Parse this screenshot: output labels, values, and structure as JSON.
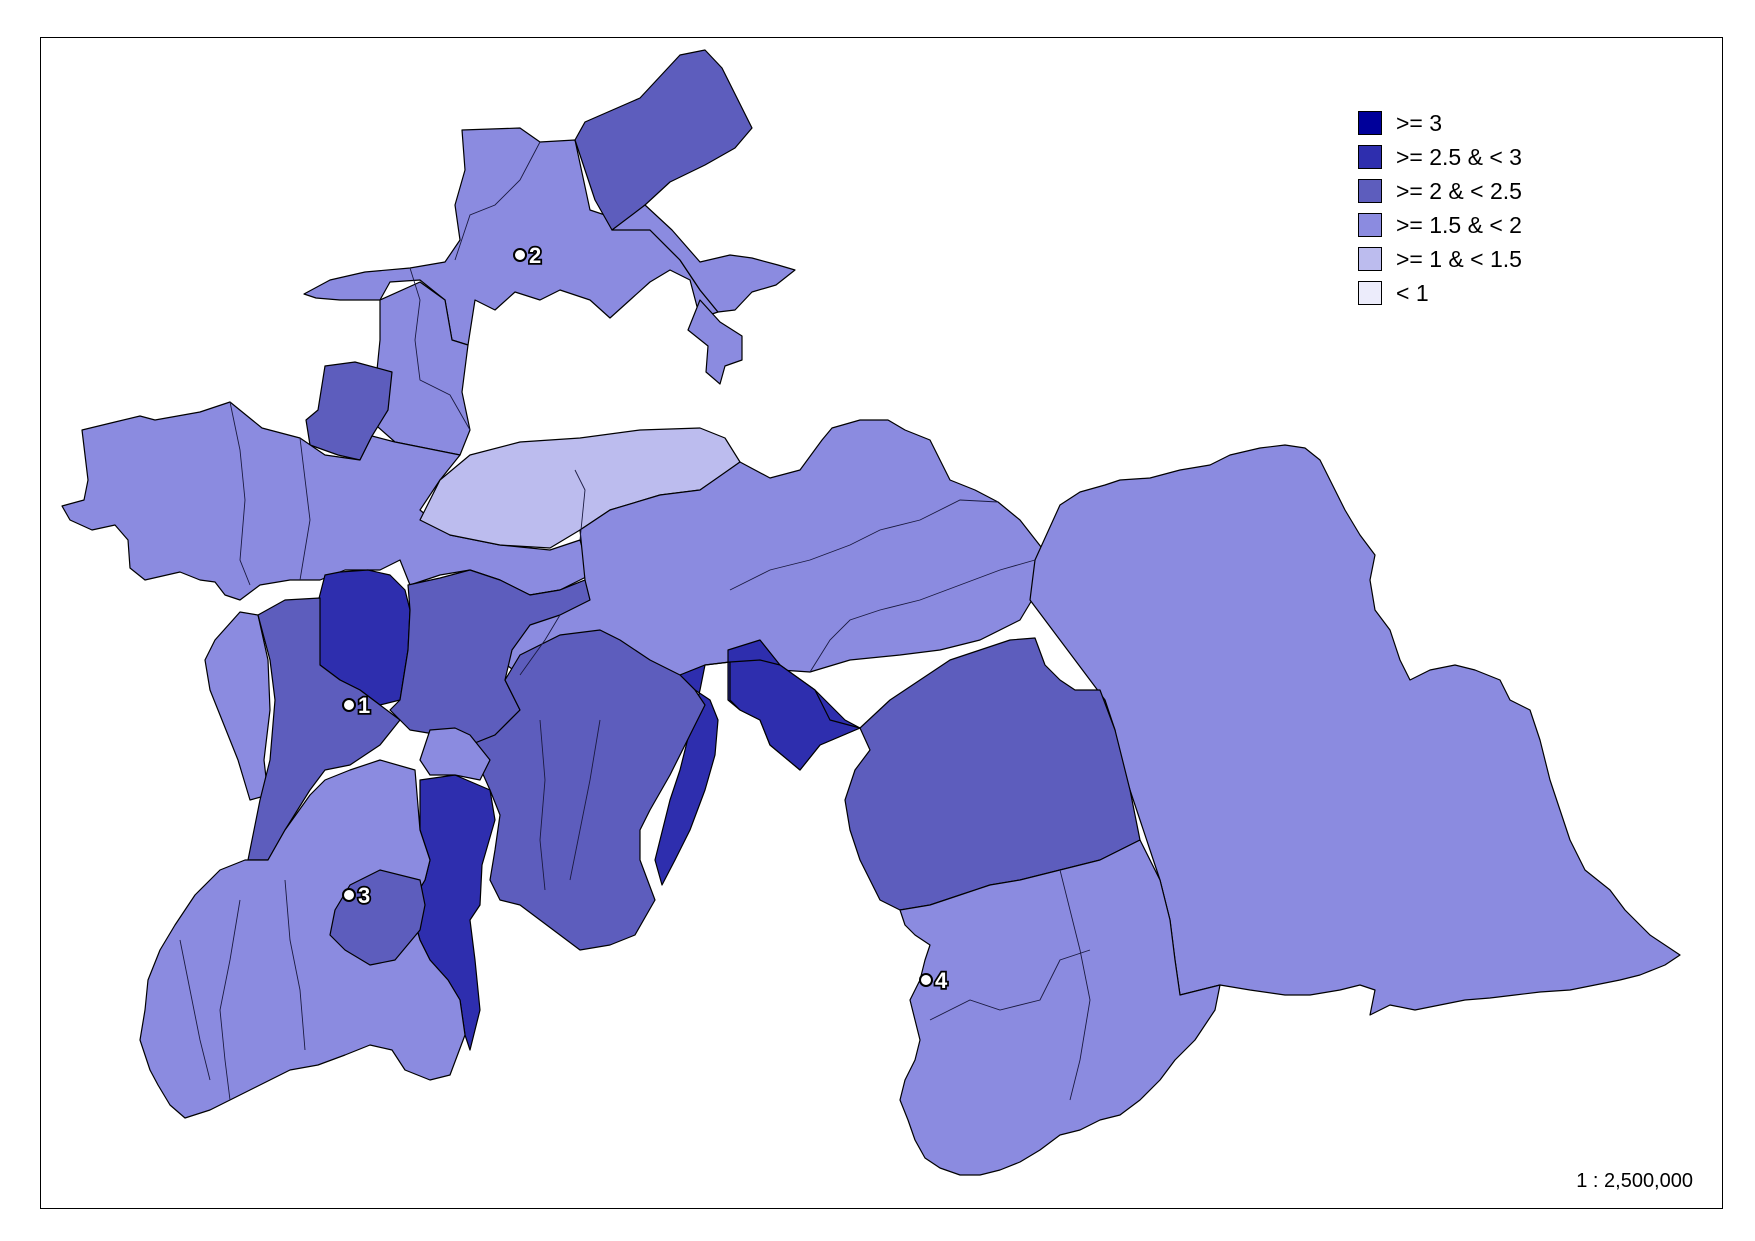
{
  "legend": {
    "items": [
      {
        "label": ">= 3",
        "color": "#00009a"
      },
      {
        "label": ">= 2.5 & < 3",
        "color": "#2e2eae"
      },
      {
        "label": ">= 2 & < 2.5",
        "color": "#5d5dbd"
      },
      {
        "label": ">= 1.5 & < 2",
        "color": "#8b8be0"
      },
      {
        "label": ">= 1 & < 1.5",
        "color": "#bcbcee"
      },
      {
        "label": "< 1",
        "color": "#ececfb"
      }
    ]
  },
  "scale": "1 : 2,500,000",
  "cities": [
    {
      "label": "1"
    },
    {
      "label": "2"
    },
    {
      "label": "3"
    },
    {
      "label": "4"
    }
  ]
}
